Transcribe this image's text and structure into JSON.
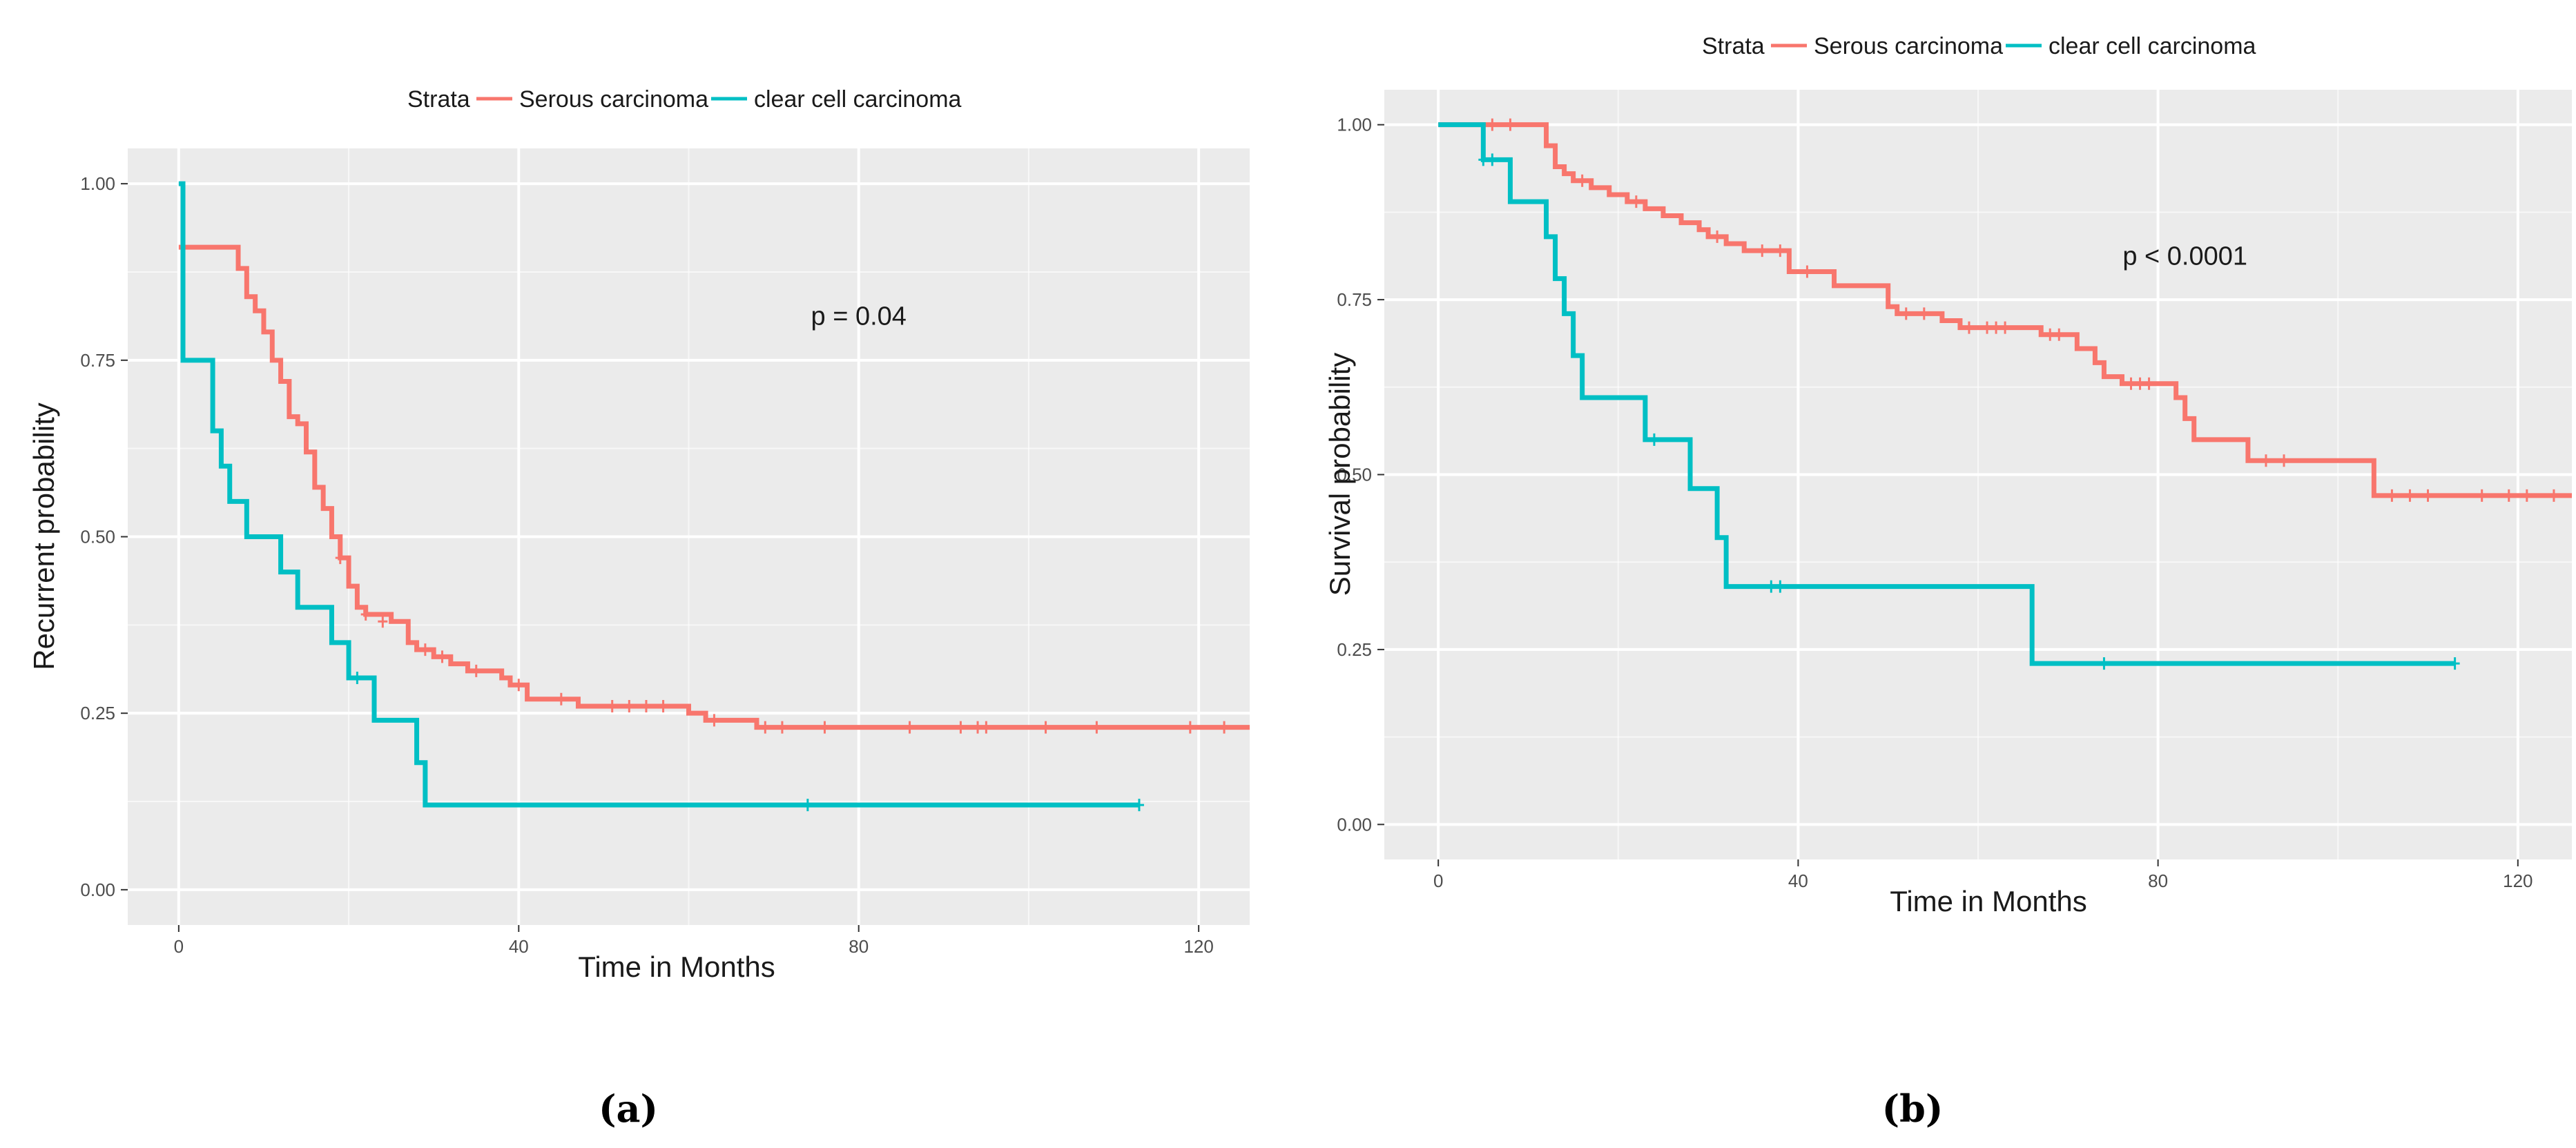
{
  "colors": {
    "serous": "#F8766D",
    "clear_cell": "#00BFC4",
    "panel_bg": "#EBEBEB",
    "grid": "#FFFFFF"
  },
  "chart_data": [
    {
      "type": "line",
      "subtype": "kaplan-meier",
      "caption": "(a)",
      "xlabel": "Time in Months",
      "ylabel": "Recurrent probability",
      "xlim": [
        -6,
        126
      ],
      "ylim": [
        -0.05,
        1.05
      ],
      "xticks": [
        0,
        40,
        80,
        120
      ],
      "xtick_labels": [
        "0",
        "40",
        "80",
        "120"
      ],
      "yticks": [
        0.0,
        0.25,
        0.5,
        0.75,
        1.0
      ],
      "ytick_labels": [
        "0.00",
        "0.25",
        "0.50",
        "0.75",
        "1.00"
      ],
      "legend": {
        "title": "Strata",
        "position": "top",
        "entries": [
          "Serous carcinoma",
          "clear cell carcinoma"
        ]
      },
      "annotation": {
        "text": "p = 0.04",
        "x": 80,
        "y": 0.8
      },
      "series": [
        {
          "name": "Serous carcinoma",
          "color": "#F8766D",
          "steps": [
            [
              0,
              0.91
            ],
            [
              7,
              0.88
            ],
            [
              8,
              0.84
            ],
            [
              9,
              0.82
            ],
            [
              10,
              0.79
            ],
            [
              11,
              0.75
            ],
            [
              12,
              0.72
            ],
            [
              13,
              0.67
            ],
            [
              14,
              0.66
            ],
            [
              15,
              0.62
            ],
            [
              16,
              0.57
            ],
            [
              17,
              0.54
            ],
            [
              18,
              0.5
            ],
            [
              19,
              0.47
            ],
            [
              20,
              0.43
            ],
            [
              21,
              0.4
            ],
            [
              22,
              0.39
            ],
            [
              25,
              0.38
            ],
            [
              27,
              0.35
            ],
            [
              28,
              0.34
            ],
            [
              30,
              0.33
            ],
            [
              32,
              0.32
            ],
            [
              34,
              0.31
            ],
            [
              38,
              0.3
            ],
            [
              39,
              0.29
            ],
            [
              41,
              0.27
            ],
            [
              47,
              0.26
            ],
            [
              60,
              0.25
            ],
            [
              62,
              0.24
            ],
            [
              68,
              0.23
            ],
            [
              126,
              0.23
            ]
          ],
          "censors": [
            [
              19,
              0.47
            ],
            [
              22,
              0.39
            ],
            [
              24,
              0.38
            ],
            [
              29,
              0.34
            ],
            [
              31,
              0.33
            ],
            [
              35,
              0.31
            ],
            [
              40,
              0.29
            ],
            [
              45,
              0.27
            ],
            [
              51,
              0.26
            ],
            [
              53,
              0.26
            ],
            [
              55,
              0.26
            ],
            [
              57,
              0.26
            ],
            [
              63,
              0.24
            ],
            [
              69,
              0.23
            ],
            [
              71,
              0.23
            ],
            [
              76,
              0.23
            ],
            [
              86,
              0.23
            ],
            [
              92,
              0.23
            ],
            [
              94,
              0.23
            ],
            [
              95,
              0.23
            ],
            [
              102,
              0.23
            ],
            [
              108,
              0.23
            ],
            [
              119,
              0.23
            ],
            [
              123,
              0.23
            ]
          ]
        },
        {
          "name": "clear cell carcinoma",
          "color": "#00BFC4",
          "steps": [
            [
              0,
              1.0
            ],
            [
              0.5,
              0.75
            ],
            [
              4,
              0.65
            ],
            [
              5,
              0.6
            ],
            [
              6,
              0.55
            ],
            [
              8,
              0.5
            ],
            [
              12,
              0.45
            ],
            [
              14,
              0.4
            ],
            [
              18,
              0.35
            ],
            [
              20,
              0.3
            ],
            [
              23,
              0.24
            ],
            [
              28,
              0.18
            ],
            [
              29,
              0.12
            ],
            [
              113,
              0.12
            ]
          ],
          "censors": [
            [
              21,
              0.3
            ],
            [
              74,
              0.12
            ],
            [
              113,
              0.12
            ]
          ]
        }
      ]
    },
    {
      "type": "line",
      "subtype": "kaplan-meier",
      "caption": "(b)",
      "xlabel": "Time in Months",
      "ylabel": "Survival probability",
      "xlim": [
        -6,
        126
      ],
      "ylim": [
        -0.05,
        1.05
      ],
      "xticks": [
        0,
        40,
        80,
        120
      ],
      "xtick_labels": [
        "0",
        "40",
        "80",
        "120"
      ],
      "yticks": [
        0.0,
        0.25,
        0.5,
        0.75,
        1.0
      ],
      "ytick_labels": [
        "0.00",
        "0.25",
        "0.50",
        "0.75",
        "1.00"
      ],
      "legend": {
        "title": "Strata",
        "position": "top",
        "entries": [
          "Serous carcinoma",
          "clear cell carcinoma"
        ]
      },
      "annotation": {
        "text": "p < 0.0001",
        "x": 83,
        "y": 0.8
      },
      "series": [
        {
          "name": "Serous carcinoma",
          "color": "#F8766D",
          "steps": [
            [
              0,
              1.0
            ],
            [
              12,
              0.97
            ],
            [
              13,
              0.94
            ],
            [
              14,
              0.93
            ],
            [
              15,
              0.92
            ],
            [
              17,
              0.91
            ],
            [
              19,
              0.9
            ],
            [
              21,
              0.89
            ],
            [
              23,
              0.88
            ],
            [
              25,
              0.87
            ],
            [
              27,
              0.86
            ],
            [
              29,
              0.85
            ],
            [
              30,
              0.84
            ],
            [
              32,
              0.83
            ],
            [
              34,
              0.82
            ],
            [
              39,
              0.79
            ],
            [
              44,
              0.77
            ],
            [
              50,
              0.74
            ],
            [
              51,
              0.73
            ],
            [
              56,
              0.72
            ],
            [
              58,
              0.71
            ],
            [
              64,
              0.71
            ],
            [
              67,
              0.7
            ],
            [
              71,
              0.68
            ],
            [
              73,
              0.66
            ],
            [
              74,
              0.64
            ],
            [
              76,
              0.63
            ],
            [
              82,
              0.61
            ],
            [
              83,
              0.58
            ],
            [
              84,
              0.55
            ],
            [
              90,
              0.52
            ],
            [
              104,
              0.47
            ],
            [
              126,
              0.47
            ]
          ],
          "censors": [
            [
              6,
              1.0
            ],
            [
              8,
              1.0
            ],
            [
              16,
              0.92
            ],
            [
              22,
              0.89
            ],
            [
              31,
              0.84
            ],
            [
              36,
              0.82
            ],
            [
              38,
              0.82
            ],
            [
              41,
              0.79
            ],
            [
              52,
              0.73
            ],
            [
              54,
              0.73
            ],
            [
              59,
              0.71
            ],
            [
              61,
              0.71
            ],
            [
              62,
              0.71
            ],
            [
              63,
              0.71
            ],
            [
              68,
              0.7
            ],
            [
              69,
              0.7
            ],
            [
              77,
              0.63
            ],
            [
              78,
              0.63
            ],
            [
              79,
              0.63
            ],
            [
              92,
              0.52
            ],
            [
              94,
              0.52
            ],
            [
              106,
              0.47
            ],
            [
              108,
              0.47
            ],
            [
              110,
              0.47
            ],
            [
              116,
              0.47
            ],
            [
              119,
              0.47
            ],
            [
              121,
              0.47
            ],
            [
              124,
              0.47
            ]
          ]
        },
        {
          "name": "clear cell carcinoma",
          "color": "#00BFC4",
          "steps": [
            [
              0,
              1.0
            ],
            [
              5,
              0.95
            ],
            [
              8,
              0.89
            ],
            [
              12,
              0.84
            ],
            [
              13,
              0.78
            ],
            [
              14,
              0.73
            ],
            [
              15,
              0.67
            ],
            [
              16,
              0.61
            ],
            [
              23,
              0.55
            ],
            [
              28,
              0.48
            ],
            [
              31,
              0.41
            ],
            [
              32,
              0.34
            ],
            [
              66,
              0.23
            ],
            [
              113,
              0.23
            ]
          ],
          "censors": [
            [
              5,
              0.95
            ],
            [
              6,
              0.95
            ],
            [
              24,
              0.55
            ],
            [
              37,
              0.34
            ],
            [
              38,
              0.34
            ],
            [
              74,
              0.23
            ],
            [
              113,
              0.23
            ]
          ]
        }
      ]
    }
  ]
}
